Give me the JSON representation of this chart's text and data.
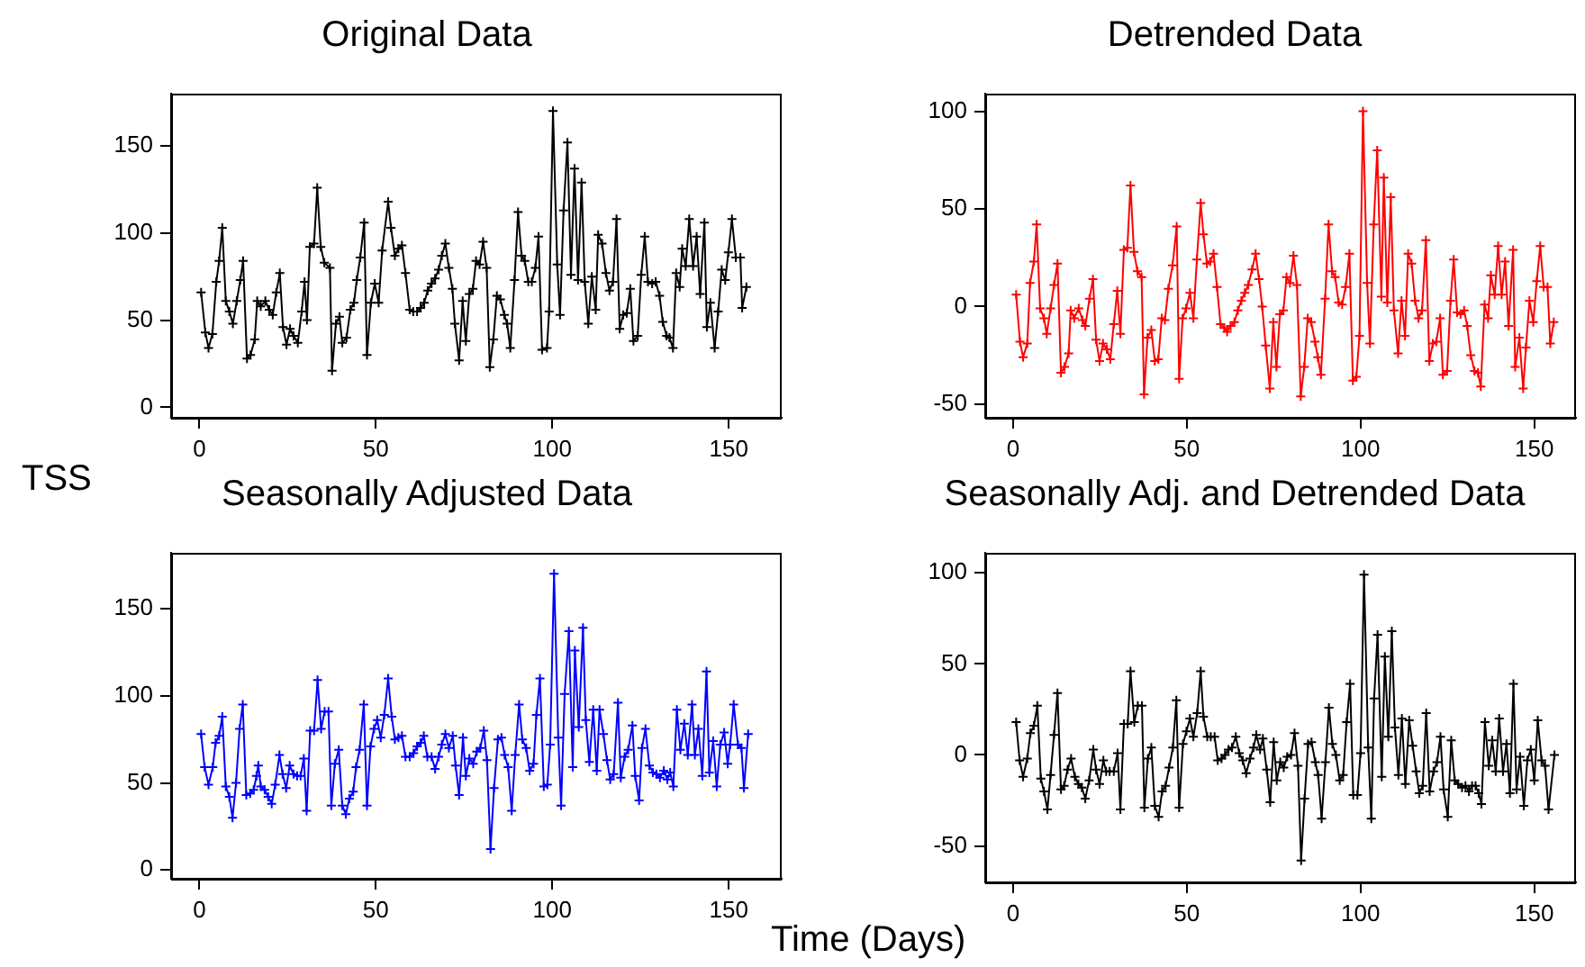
{
  "chart_data": [
    {
      "type": "line",
      "title": "Original Data",
      "ylabel": "TSS",
      "color": "#000000",
      "marker": "cross",
      "line_style": "solid",
      "x": [
        0.5,
        1.7,
        2.6,
        3.7,
        4.8,
        5.6,
        6.5,
        7.5,
        8.5,
        9.5,
        10.6,
        11.6,
        12.4,
        13.5,
        14.5,
        15.7,
        16.4,
        17.4,
        18.7,
        19.8,
        20.8,
        21.8,
        22.8,
        23.7,
        24.7,
        25.7,
        26.7,
        27.9,
        29,
        29.8,
        30.5,
        31.3,
        32.5,
        33.4,
        34.4,
        35.4,
        37,
        37.6,
        38.7,
        39.7,
        40.5,
        41.7,
        42.8,
        43.8,
        44.6,
        45.6,
        46.7,
        47.5,
        48.6,
        49.7,
        50.8,
        51.8,
        53.5,
        54.3,
        55.4,
        56.4,
        57.4,
        58.4,
        59.6,
        60.6,
        61.7,
        62.7,
        63.7,
        64.7,
        65.8,
        66.8,
        67.8,
        68.7,
        69.7,
        70.7,
        71.7,
        72.4,
        73.6,
        74.6,
        75.5,
        76.5,
        77.5,
        78.4,
        79.4,
        80.4,
        81.4,
        82.3,
        83.3,
        84.3,
        85.3,
        86.4,
        87.2,
        88.1,
        89.3,
        90.3,
        91.3,
        92.2,
        93.2,
        94.2,
        95.2,
        96.1,
        97.1,
        98.5,
        99.1,
        100.2,
        101.4,
        102.2,
        103.2,
        104.3,
        105.3,
        106.3,
        107.3,
        108.3,
        109.2,
        110.2,
        111.2,
        112.3,
        113,
        114.1,
        115.2,
        116.2,
        117.2,
        118.2,
        119.1,
        120.1,
        121.1,
        122.1,
        123,
        124.2,
        125.2,
        126.2,
        127.1,
        128.3,
        129.3,
        130.4,
        131.3,
        132.4,
        133.2,
        134.2,
        135.1,
        136.1,
        136.8,
        137.8,
        138.8,
        139.9,
        140.9,
        141.9,
        143.1,
        143.8,
        144.8,
        146,
        147,
        148,
        149,
        149.9,
        150.9,
        152,
        153.3,
        153.8,
        155
      ],
      "values": [
        66,
        43,
        34,
        42,
        72,
        84,
        103,
        61,
        55,
        48,
        61,
        73,
        84,
        28,
        30,
        39,
        61,
        58,
        61,
        56,
        53,
        66,
        77,
        46,
        36,
        45,
        41,
        37,
        55,
        72,
        50,
        92,
        94,
        126,
        92,
        83,
        80,
        21,
        48,
        52,
        37,
        40,
        56,
        60,
        73,
        86,
        106,
        30,
        60,
        71,
        60,
        90,
        118,
        103,
        87,
        91,
        93,
        77,
        56,
        55,
        55,
        57,
        60,
        67,
        71,
        74,
        79,
        87,
        94,
        80,
        68,
        48,
        27,
        61,
        38,
        65,
        68,
        84,
        82,
        95,
        80,
        23,
        39,
        64,
        62,
        53,
        48,
        34,
        73,
        112,
        87,
        84,
        72,
        72,
        80,
        98,
        33,
        34,
        55,
        170,
        82,
        53,
        113,
        152,
        76,
        137,
        73,
        129,
        72,
        48,
        75,
        56,
        99,
        94,
        77,
        67,
        72,
        108,
        45,
        53,
        54,
        68,
        38,
        41,
        76,
        98,
        72,
        71,
        72,
        64,
        49,
        41,
        40,
        34,
        77,
        69,
        91,
        81,
        108,
        81,
        98,
        65,
        106,
        46,
        60,
        34,
        55,
        79,
        73,
        89,
        108,
        86,
        86,
        57,
        69
      ],
      "xlim": [
        -8,
        165
      ],
      "xticks": [
        0,
        50,
        100,
        150
      ],
      "ylim": [
        -6,
        180
      ],
      "yticks": [
        0,
        50,
        100,
        150
      ]
    },
    {
      "type": "line",
      "title": "Detrended Data",
      "color": "#ff0000",
      "marker": "cross",
      "line_style": "solid",
      "x": [
        0.9,
        2,
        2.9,
        4.1,
        4.9,
        6,
        6.8,
        7.8,
        8.9,
        9.7,
        10.8,
        11.8,
        12.8,
        13.8,
        14.8,
        16,
        16.6,
        17.6,
        18.9,
        20,
        20.8,
        22,
        23,
        23.9,
        24.9,
        25.9,
        27,
        28,
        29,
        30,
        30.9,
        31.9,
        32.9,
        33.8,
        34.8,
        35.8,
        37,
        37.7,
        38.7,
        39.8,
        40.8,
        41.8,
        42.8,
        43.7,
        44.7,
        45.9,
        47.1,
        47.8,
        48.8,
        49.8,
        50.9,
        51.9,
        52.9,
        54,
        54.8,
        55.8,
        56.7,
        57.7,
        58.7,
        59.7,
        60.8,
        61.6,
        62.6,
        63.7,
        64.7,
        65.7,
        66.7,
        67.7,
        68.8,
        69.8,
        70.8,
        71.7,
        72.7,
        73.9,
        74.9,
        75.8,
        76.8,
        77.8,
        78.7,
        79.7,
        80.7,
        81.7,
        82.8,
        83.8,
        84.8,
        85.8,
        86.9,
        87.7,
        88.6,
        89.8,
        90.8,
        91.8,
        92.7,
        93.7,
        94.7,
        95.7,
        96.8,
        97.8,
        98.8,
        99.7,
        100.7,
        101.9,
        102.7,
        103.8,
        104.8,
        106,
        106.7,
        107.7,
        108.7,
        109.6,
        110.8,
        111.8,
        112.8,
        113.7,
        114.7,
        115.7,
        116.7,
        117.7,
        118.8,
        119.8,
        120.8,
        121.8,
        122.9,
        123.7,
        124.9,
        125.9,
        126.8,
        127.8,
        128.8,
        129.8,
        130.7,
        131.7,
        132.8,
        133.8,
        134.6,
        135.7,
        136.7,
        137.5,
        138.6,
        139.6,
        140.6,
        141.6,
        142.6,
        143.9,
        144.5,
        145.7,
        146.8,
        147.6,
        148.6,
        149.7,
        150.7,
        151.7,
        152.7,
        153.8,
        154.6,
        155.6
      ],
      "values": [
        6,
        -18,
        -26,
        -19,
        12,
        23,
        42,
        -1,
        -6,
        -14,
        -1,
        11,
        22,
        -34,
        -31,
        -24,
        -2,
        -6,
        -1,
        -7,
        -10,
        4,
        14,
        -17,
        -28,
        -19,
        -22,
        -27,
        -9,
        8,
        -14,
        29,
        30,
        62,
        28,
        18,
        15,
        -45,
        -16,
        -12,
        -28,
        -27,
        -6,
        -7,
        9,
        21,
        41,
        -37,
        -6,
        -1,
        7,
        -6,
        24,
        53,
        37,
        22,
        23,
        27,
        10,
        -9,
        -11,
        -13,
        -10,
        -8,
        -2,
        3,
        7,
        11,
        19,
        27,
        14,
        0,
        -20,
        -42,
        -8,
        -31,
        -4,
        -2,
        15,
        12,
        26,
        11,
        -46,
        -31,
        -6,
        -8,
        -18,
        -26,
        -35,
        4,
        42,
        18,
        15,
        2,
        1,
        10,
        27,
        -38,
        -36,
        -15,
        100,
        12,
        -19,
        42,
        80,
        5,
        66,
        2,
        56,
        -2,
        -24,
        3,
        -15,
        27,
        22,
        3,
        -6,
        -2,
        34,
        -28,
        -19,
        -18,
        -6,
        -35,
        -33,
        3,
        24,
        -3,
        -4,
        -2,
        -10,
        -25,
        -33,
        -34,
        -41,
        1,
        -6,
        16,
        6,
        31,
        6,
        23,
        -10,
        29,
        -31,
        -16,
        -42,
        -21,
        3,
        -8,
        13,
        31,
        10,
        10,
        -19,
        -8
      ],
      "xlim": [
        -8,
        162
      ],
      "xticks": [
        0,
        50,
        100,
        150
      ],
      "ylim": [
        -57,
        109
      ],
      "yticks": [
        -50,
        0,
        50,
        100
      ]
    },
    {
      "type": "line",
      "title": "Seasonally Adjusted Data",
      "xlabel": "Time (Days)",
      "color": "#0000ff",
      "marker": "cross",
      "line_style": "solid",
      "x": [
        0.5,
        1.5,
        2.6,
        3.8,
        4.6,
        5.6,
        6.5,
        7.5,
        8.5,
        9.4,
        10.4,
        11.4,
        12.3,
        13.3,
        14.4,
        15.4,
        16.2,
        16.7,
        17.4,
        18.5,
        19.5,
        20.5,
        21.5,
        22.7,
        23.6,
        24.6,
        25.6,
        26.7,
        27.7,
        28.7,
        29.6,
        30.4,
        31.4,
        32.5,
        33.5,
        34.5,
        35.5,
        36.6,
        37.4,
        38.4,
        39.5,
        40.5,
        41.5,
        42.5,
        43.6,
        44.4,
        45.4,
        46.6,
        47.5,
        48.5,
        49.5,
        50.4,
        51.4,
        52.4,
        53.5,
        54.5,
        55.4,
        56.4,
        57.4,
        58.4,
        59.6,
        60.7,
        61.7,
        62.7,
        63.6,
        64.6,
        65.8,
        66.8,
        67.8,
        68.7,
        69.7,
        70.7,
        71.8,
        72.6,
        73.6,
        74.7,
        75.5,
        76.5,
        77.6,
        78.6,
        79.6,
        80.6,
        81.5,
        82.5,
        83.5,
        84.6,
        85.6,
        86.5,
        87.5,
        88.5,
        89.5,
        90.6,
        91.5,
        92.6,
        93.6,
        94.7,
        95.5,
        96.5,
        97.6,
        98.6,
        99.4,
        100.5,
        101.7,
        102.5,
        103.5,
        104.7,
        105.8,
        106.4,
        107.5,
        108.7,
        109.5,
        110.5,
        111.6,
        112.6,
        113.4,
        114.5,
        115.5,
        116.4,
        117.4,
        118.6,
        119.4,
        120.5,
        121.5,
        122.7,
        123.5,
        124.6,
        125.4,
        126.4,
        127.5,
        128.5,
        129.5,
        130.5,
        131.6,
        132.6,
        133.4,
        134.3,
        135.3,
        136.3,
        137.4,
        138.4,
        139.6,
        140.4,
        141.4,
        142.5,
        143.7,
        144.5,
        145.6,
        146.6,
        147.6,
        148.7,
        149.7,
        150.4,
        151.4,
        152.6,
        153.6,
        154.3,
        155.5
      ],
      "values": [
        78,
        59,
        49,
        59,
        73,
        77,
        88,
        48,
        42,
        30,
        50,
        81,
        95,
        43,
        44,
        46,
        54,
        60,
        48,
        46,
        42,
        38,
        49,
        66,
        55,
        47,
        60,
        55,
        54,
        54,
        64,
        34,
        80,
        80,
        109,
        81,
        91,
        91,
        37,
        61,
        69,
        37,
        32,
        41,
        45,
        59,
        69,
        95,
        37,
        71,
        81,
        86,
        76,
        89,
        110,
        88,
        75,
        76,
        77,
        65,
        65,
        67,
        71,
        73,
        77,
        65,
        65,
        58,
        65,
        72,
        78,
        70,
        77,
        60,
        43,
        76,
        54,
        64,
        61,
        68,
        70,
        80,
        63,
        12,
        47,
        75,
        76,
        66,
        59,
        34,
        66,
        95,
        75,
        70,
        57,
        61,
        89,
        110,
        48,
        49,
        72,
        170,
        76,
        37,
        101,
        137,
        59,
        126,
        82,
        139,
        86,
        62,
        92,
        57,
        92,
        78,
        63,
        52,
        55,
        96,
        53,
        65,
        69,
        83,
        54,
        40,
        70,
        81,
        60,
        56,
        55,
        53,
        57,
        52,
        56,
        48,
        92,
        69,
        84,
        66,
        95,
        66,
        81,
        54,
        114,
        56,
        74,
        48,
        72,
        79,
        61,
        72,
        95,
        72,
        70,
        47,
        78
      ],
      "xlim": [
        -8,
        165
      ],
      "xticks": [
        0,
        50,
        100,
        150
      ],
      "ylim": [
        -5,
        182
      ],
      "yticks": [
        0,
        50,
        100,
        150
      ]
    },
    {
      "type": "line",
      "title": "Seasonally Adj. and Detrended Data",
      "color": "#000000",
      "marker": "cross",
      "line_style": "solid",
      "x": [
        0.9,
        1.9,
        2.9,
        4.1,
        5,
        6,
        7,
        8,
        8.9,
        9.9,
        10.8,
        11.8,
        12.8,
        13.8,
        14.7,
        15.7,
        16.7,
        17.8,
        18.8,
        19.8,
        20.8,
        21.9,
        23.1,
        23.9,
        24.9,
        26,
        26.8,
        27.8,
        29,
        30.1,
        30.9,
        31.9,
        33,
        33.8,
        34.9,
        35.9,
        37.1,
        37.8,
        38.8,
        39.8,
        40.8,
        41.9,
        42.9,
        43.9,
        44.9,
        46,
        47,
        47.8,
        48.9,
        49.9,
        50.9,
        51.9,
        53,
        54,
        54.8,
        55.9,
        56.9,
        58,
        58.9,
        60,
        61,
        62,
        63,
        64.1,
        65.1,
        66.1,
        67.1,
        68.2,
        69.2,
        70,
        71.1,
        71.9,
        73,
        74,
        75,
        75.9,
        76.9,
        77.9,
        78.9,
        80,
        81,
        82,
        82.9,
        83.9,
        84.9,
        85.9,
        87,
        87.8,
        88.8,
        89.9,
        90.9,
        91.9,
        92.9,
        94,
        95,
        96,
        97,
        97.9,
        99.1,
        100,
        101,
        102.2,
        103.1,
        103.9,
        104.9,
        106.1,
        107,
        108,
        109,
        109.9,
        110.9,
        111.9,
        112.9,
        114,
        115,
        116,
        116.9,
        117.9,
        118.9,
        119.9,
        121,
        122,
        123,
        123.9,
        125.1,
        126.1,
        127.1,
        128.1,
        129.2,
        130.2,
        131.2,
        132.1,
        133.1,
        134,
        134.8,
        135.8,
        136.9,
        137.9,
        138.9,
        139.9,
        141,
        142,
        143,
        144,
        144.9,
        145.9,
        147,
        148,
        149,
        150,
        151,
        152.1,
        153.1,
        154.1,
        155.8
      ],
      "values": [
        18,
        -3,
        -12,
        -2,
        12,
        16,
        27,
        -13,
        -20,
        -30,
        -11,
        11,
        34,
        -19,
        -17,
        -8,
        -2,
        -12,
        -16,
        -18,
        -24,
        -14,
        3,
        -8,
        -16,
        -3,
        -9,
        -9,
        -9,
        1,
        -30,
        17,
        17,
        46,
        18,
        27,
        27,
        -29,
        -2,
        4,
        -28,
        -34,
        -20,
        -17,
        -7,
        4,
        30,
        -29,
        6,
        13,
        20,
        10,
        23,
        46,
        21,
        10,
        10,
        10,
        -3,
        -2,
        0,
        3,
        4,
        10,
        1,
        -3,
        -10,
        -2,
        4,
        11,
        3,
        9,
        -8,
        -26,
        7,
        -14,
        -4,
        -7,
        -1,
        0,
        12,
        -6,
        -58,
        -24,
        6,
        7,
        -4,
        -11,
        -35,
        -4,
        26,
        6,
        0,
        -14,
        -11,
        18,
        39,
        -22,
        -22,
        1,
        99,
        4,
        -35,
        31,
        66,
        -12,
        54,
        10,
        68,
        15,
        -11,
        20,
        -16,
        19,
        5,
        -9,
        -21,
        -17,
        23,
        -20,
        -9,
        -4,
        10,
        -19,
        -34,
        8,
        -14,
        -16,
        -18,
        -17,
        -20,
        -17,
        -17,
        -21,
        -27,
        18,
        -6,
        8,
        -9,
        20,
        -9,
        6,
        -21,
        39,
        -19,
        -1,
        -28,
        -3,
        3,
        -14,
        19,
        -3,
        -6,
        -30,
        0
      ],
      "xlim": [
        -8,
        162
      ],
      "xticks": [
        0,
        50,
        100,
        150
      ],
      "ylim": [
        -70,
        111
      ],
      "yticks": [
        -50,
        0,
        50,
        100
      ]
    }
  ]
}
